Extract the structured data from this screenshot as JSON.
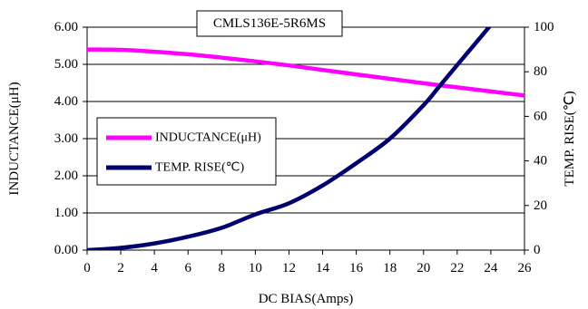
{
  "chart_data": {
    "type": "line",
    "title": "CMLS136E-5R6MS",
    "xlabel": "DC BIAS(Amps)",
    "ylabel_left": "INDUCTANCE(μH)",
    "ylabel_right": "TEMP. RISE(℃)",
    "xlim": [
      0,
      26
    ],
    "ylim_left": [
      0,
      6
    ],
    "ylim_right": [
      0,
      100
    ],
    "x_ticks": [
      "0",
      "2",
      "4",
      "6",
      "8",
      "10",
      "12",
      "14",
      "16",
      "18",
      "20",
      "22",
      "24",
      "26"
    ],
    "y_left_ticks": [
      "0.00",
      "1.00",
      "2.00",
      "3.00",
      "4.00",
      "5.00",
      "6.00"
    ],
    "y_right_ticks": [
      "0",
      "20",
      "40",
      "60",
      "80",
      "100"
    ],
    "grid": true,
    "legend_position": "left-middle",
    "series": [
      {
        "name": "INDUCTANCE(μH)",
        "axis": "left",
        "color": "#ff00ff",
        "x": [
          0,
          2,
          4,
          6,
          8,
          10,
          12,
          14,
          16,
          18,
          20,
          22,
          24,
          26
        ],
        "values": [
          5.4,
          5.39,
          5.34,
          5.27,
          5.18,
          5.08,
          4.97,
          4.85,
          4.73,
          4.61,
          4.49,
          4.38,
          4.27,
          4.16
        ]
      },
      {
        "name": "TEMP. RISE(℃)",
        "axis": "right",
        "color": "#00006e",
        "x": [
          0,
          2,
          4,
          6,
          8,
          10,
          12,
          14,
          16,
          18,
          20,
          21,
          22,
          23,
          24
        ],
        "values": [
          0,
          1,
          3,
          6,
          10,
          16,
          21,
          29,
          39,
          50,
          65,
          74,
          83,
          92,
          101
        ]
      }
    ]
  }
}
